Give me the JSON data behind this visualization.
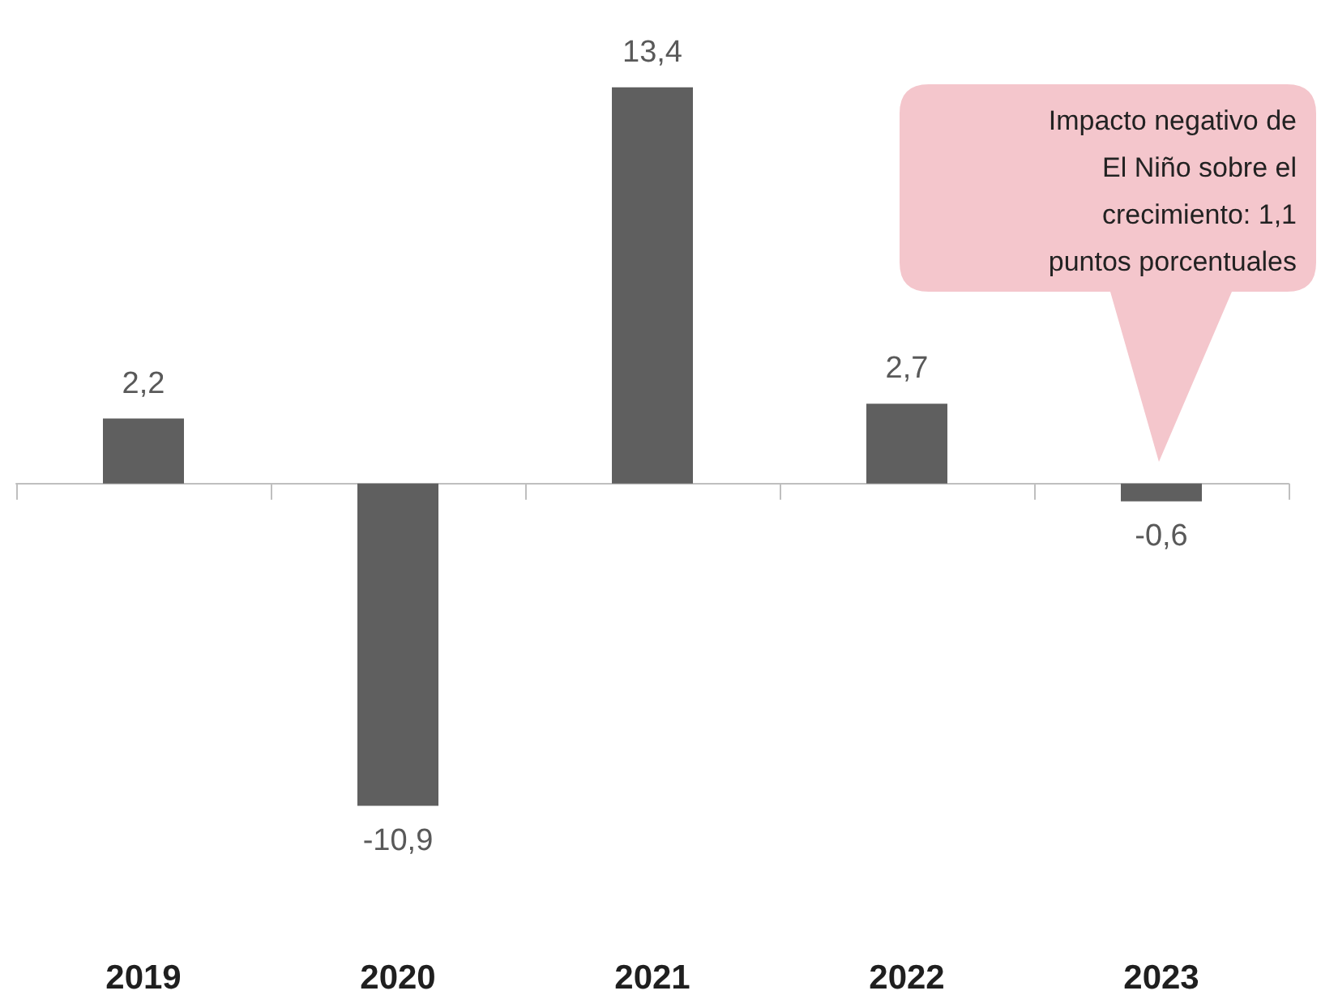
{
  "chart_data": {
    "type": "bar",
    "categories": [
      "2019",
      "2020",
      "2021",
      "2022",
      "2023"
    ],
    "values": [
      2.2,
      -10.9,
      13.4,
      2.7,
      -0.6
    ],
    "value_labels": [
      "2,2",
      "-10,9",
      "13,4",
      "2,7",
      "-0,6"
    ],
    "color": "#5f5f5f",
    "tick_labels": "x",
    "annotations": [
      "Impacto negativo de\nEl Niño sobre el\ncrecimiento: 1,1\npuntos porcentuales"
    ]
  }
}
